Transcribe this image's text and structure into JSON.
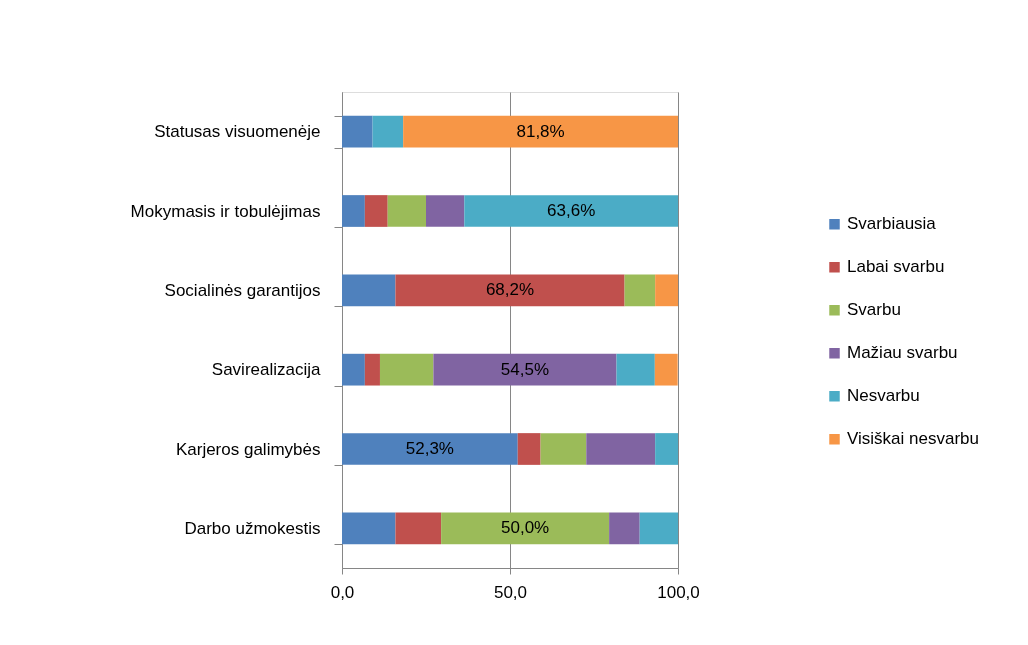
{
  "chart_data": {
    "type": "bar",
    "orientation": "horizontal",
    "stacked": true,
    "categories": [
      "Statusas visuomenėje",
      "Mokymasis ir tobulėjimas",
      "Socialinės garantijos",
      "Savirealizacija",
      "Karjeros galimybės",
      "Darbo užmokestis"
    ],
    "series": [
      {
        "name": "Svarbiausia",
        "color": "#4f81bd",
        "values": [
          9.1,
          6.8,
          15.9,
          6.8,
          52.3,
          15.9
        ],
        "value_labels": [
          null,
          null,
          null,
          null,
          "52,3%",
          null
        ]
      },
      {
        "name": "Labai svarbu",
        "color": "#c0504d",
        "values": [
          0,
          6.8,
          68.2,
          4.5,
          6.8,
          13.6
        ],
        "value_labels": [
          null,
          null,
          "68,2%",
          null,
          null,
          null
        ]
      },
      {
        "name": "Svarbu",
        "color": "#9bbb59",
        "values": [
          0,
          11.4,
          9.1,
          15.9,
          13.6,
          50.0
        ],
        "value_labels": [
          null,
          null,
          null,
          null,
          null,
          "50,0%"
        ]
      },
      {
        "name": "Mažiau svarbu",
        "color": "#8064a2",
        "values": [
          0,
          11.4,
          0,
          54.5,
          20.5,
          9.1
        ],
        "value_labels": [
          null,
          null,
          null,
          "54,5%",
          null,
          null
        ]
      },
      {
        "name": "Nesvarbu",
        "color": "#4bacc6",
        "values": [
          9.1,
          63.6,
          0,
          11.4,
          6.8,
          11.4
        ],
        "value_labels": [
          null,
          "63,6%",
          null,
          null,
          null,
          null
        ]
      },
      {
        "name": "Visiškai nesvarbu",
        "color": "#f79646",
        "values": [
          81.8,
          0,
          6.8,
          6.8,
          0,
          0
        ],
        "value_labels": [
          "81,8%",
          null,
          null,
          null,
          null,
          null
        ]
      }
    ],
    "xlim": [
      0,
      100
    ],
    "xticks": [
      {
        "value": 0,
        "label": "0,0"
      },
      {
        "value": 50,
        "label": "50,0"
      },
      {
        "value": 100,
        "label": "100,0"
      }
    ],
    "grid": "x",
    "legend": "right"
  }
}
